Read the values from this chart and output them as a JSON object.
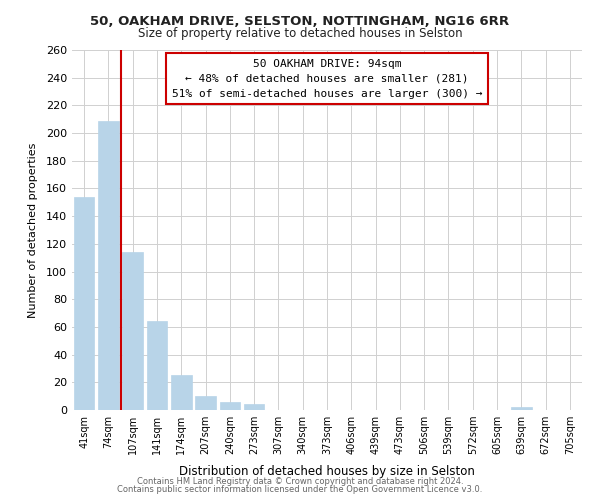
{
  "title1": "50, OAKHAM DRIVE, SELSTON, NOTTINGHAM, NG16 6RR",
  "title2": "Size of property relative to detached houses in Selston",
  "xlabel": "Distribution of detached houses by size in Selston",
  "ylabel": "Number of detached properties",
  "bar_color": "#b8d4e8",
  "bar_edge_color": "#b8d4e8",
  "annotation_line_color": "#cc0000",
  "categories": [
    "41sqm",
    "74sqm",
    "107sqm",
    "141sqm",
    "174sqm",
    "207sqm",
    "240sqm",
    "273sqm",
    "307sqm",
    "340sqm",
    "373sqm",
    "406sqm",
    "439sqm",
    "473sqm",
    "506sqm",
    "539sqm",
    "572sqm",
    "605sqm",
    "639sqm",
    "672sqm",
    "705sqm"
  ],
  "values": [
    154,
    209,
    114,
    64,
    25,
    10,
    6,
    4,
    0,
    0,
    0,
    0,
    0,
    0,
    0,
    0,
    0,
    0,
    2,
    0,
    0
  ],
  "ylim": [
    0,
    260
  ],
  "yticks": [
    0,
    20,
    40,
    60,
    80,
    100,
    120,
    140,
    160,
    180,
    200,
    220,
    240,
    260
  ],
  "red_line_x": 1.5,
  "annotation_label": "50 OAKHAM DRIVE: 94sqm",
  "annotation_text1": "← 48% of detached houses are smaller (281)",
  "annotation_text2": "51% of semi-detached houses are larger (300) →",
  "footer1": "Contains HM Land Registry data © Crown copyright and database right 2024.",
  "footer2": "Contains public sector information licensed under the Open Government Licence v3.0.",
  "background_color": "#ffffff",
  "grid_color": "#d0d0d0"
}
